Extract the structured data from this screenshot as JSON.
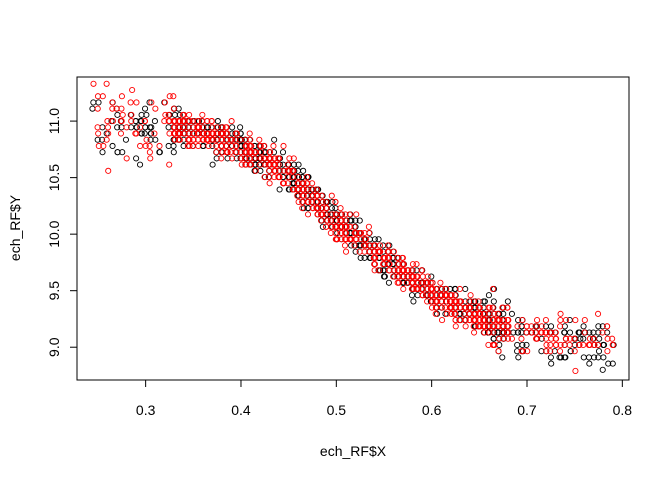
{
  "chart_data": {
    "type": "scatter",
    "title": "",
    "xlabel": "ech_RF$X",
    "ylabel": "ech_RF$Y",
    "xlim": [
      0.228,
      0.807
    ],
    "ylim": [
      8.71,
      11.39
    ],
    "xticks": [
      0.3,
      0.4,
      0.5,
      0.6,
      0.7,
      0.8
    ],
    "yticks": [
      9.0,
      9.5,
      10.0,
      10.5,
      11.0
    ],
    "xtick_labels": [
      "0.3",
      "0.4",
      "0.5",
      "0.6",
      "0.7",
      "0.8"
    ],
    "ytick_labels": [
      "9.0",
      "9.5",
      "10.0",
      "10.5",
      "11.0"
    ],
    "grid": false,
    "legend": "none",
    "series": [
      {
        "color": "#000000",
        "marker": "open-circle"
      },
      {
        "color": "#ff0000",
        "marker": "open-circle"
      }
    ],
    "curve": {
      "x": [
        0.245,
        0.3,
        0.35,
        0.4,
        0.45,
        0.5,
        0.55,
        0.6,
        0.65,
        0.7,
        0.75,
        0.79
      ],
      "y": [
        10.95,
        10.97,
        10.92,
        10.78,
        10.52,
        10.12,
        9.78,
        9.48,
        9.25,
        9.12,
        9.05,
        9.02
      ]
    }
  }
}
